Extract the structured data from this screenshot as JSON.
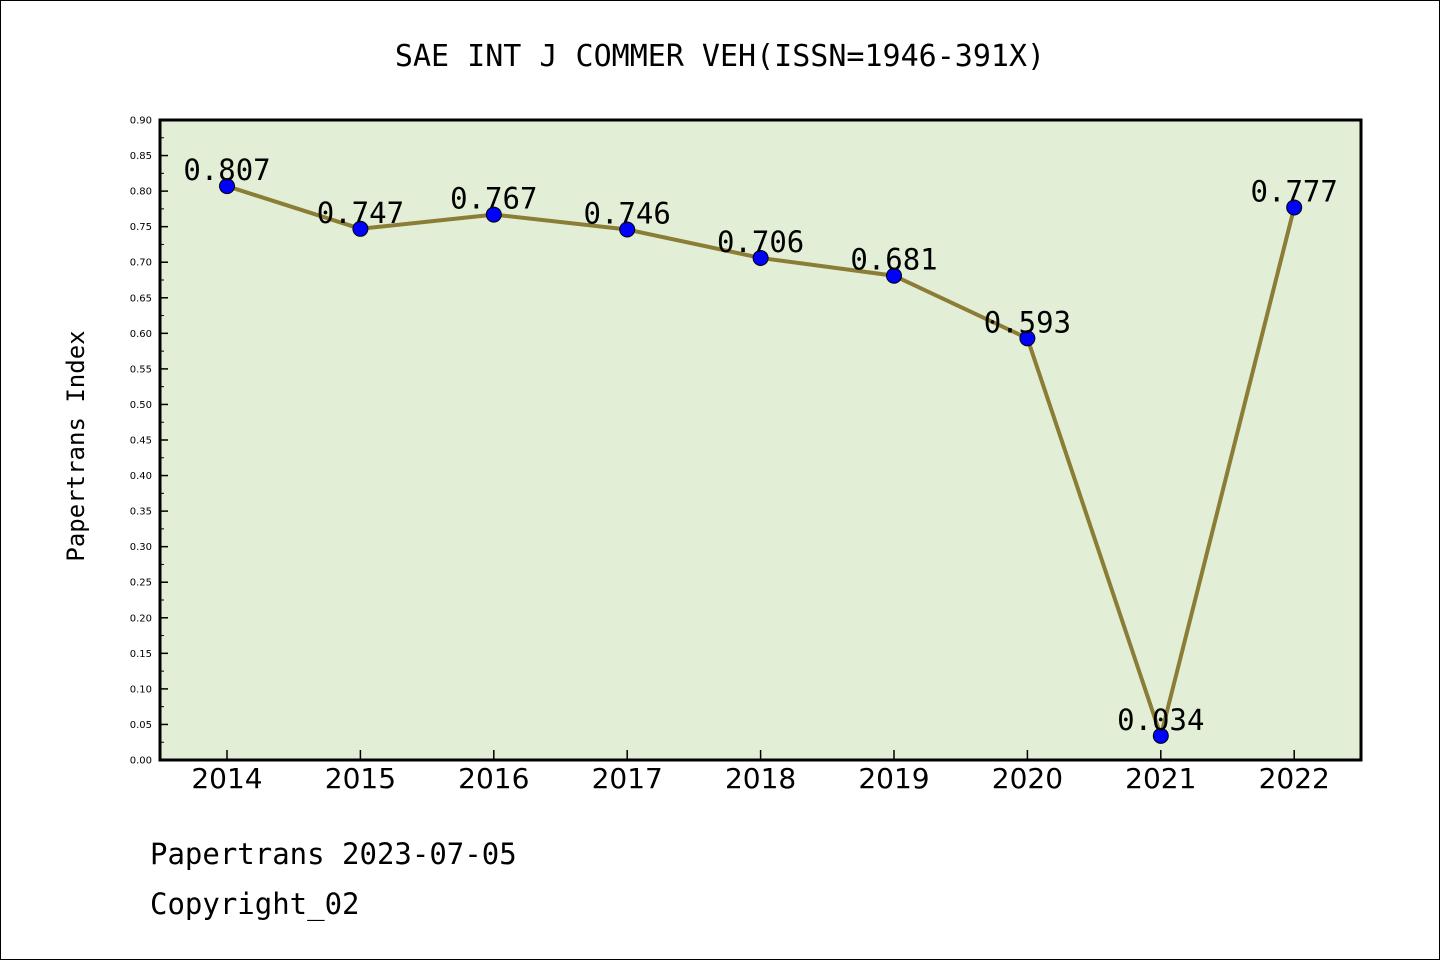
{
  "footer": {
    "line1": "Papertrans 2023-07-05",
    "line2": "Copyright_02"
  },
  "chart_data": {
    "type": "line",
    "title": "SAE INT J COMMER VEH(ISSN=1946-391X)",
    "xlabel": "",
    "ylabel": "Papertrans Index",
    "categories": [
      "2014",
      "2015",
      "2016",
      "2017",
      "2018",
      "2019",
      "2020",
      "2021",
      "2022"
    ],
    "series": [
      {
        "values": [
          0.807,
          0.747,
          0.767,
          0.746,
          0.706,
          0.681,
          0.593,
          0.034,
          0.777
        ],
        "labels": [
          "0.807",
          "0.747",
          "0.767",
          "0.746",
          "0.706",
          "0.681",
          "0.593",
          "0.034",
          "0.777"
        ],
        "line_color": "#8b7d35",
        "marker_color": "#0000ff"
      }
    ],
    "ylim": [
      0,
      0.9
    ],
    "yticks": [
      "0.00",
      "0.05",
      "0.10",
      "0.15",
      "0.20",
      "0.25",
      "0.30",
      "0.35",
      "0.40",
      "0.45",
      "0.50",
      "0.55",
      "0.60",
      "0.65",
      "0.70",
      "0.75",
      "0.80",
      "0.85",
      "0.90"
    ],
    "plot_background": "#e2efd6",
    "grid": false,
    "legend": "none"
  }
}
